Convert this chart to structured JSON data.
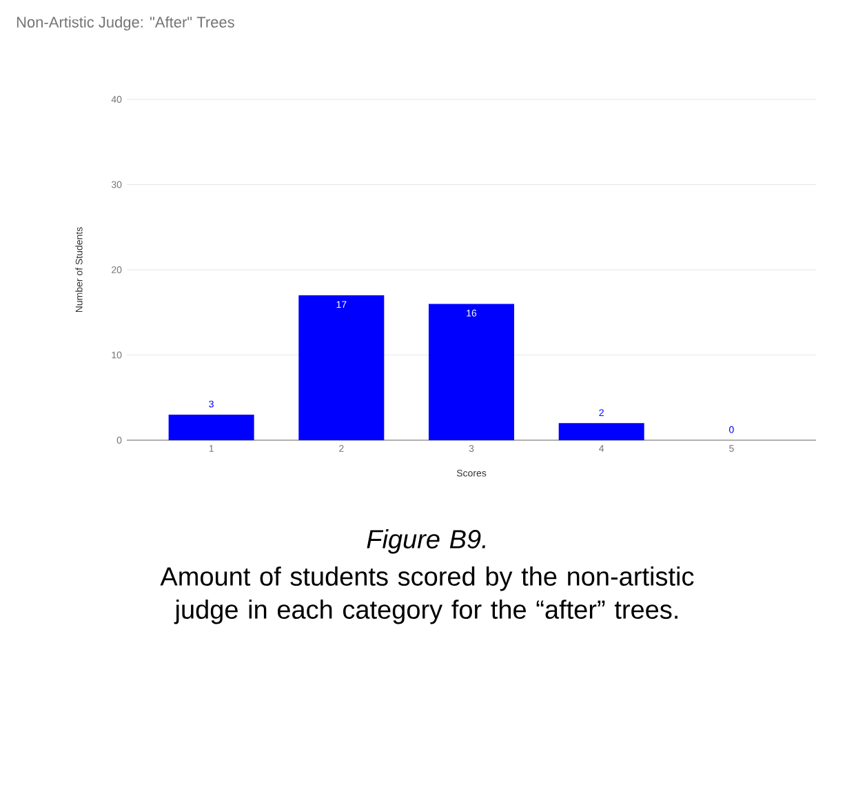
{
  "chart_data": {
    "type": "bar",
    "title": "Non-Artistic Judge: \"After\" Trees",
    "xlabel": "Scores",
    "ylabel": "Number of Students",
    "categories": [
      "1",
      "2",
      "3",
      "4",
      "5"
    ],
    "values": [
      3,
      17,
      16,
      2,
      0
    ],
    "color": "#0000ff",
    "ylim": [
      0,
      40
    ],
    "yticks": [
      0,
      10,
      20,
      30,
      40
    ],
    "grid": "y",
    "data_labels": true,
    "annotations": [
      "Figure B9.",
      "Amount of students scored by the non-artistic judge in each category for the “after” trees."
    ]
  }
}
